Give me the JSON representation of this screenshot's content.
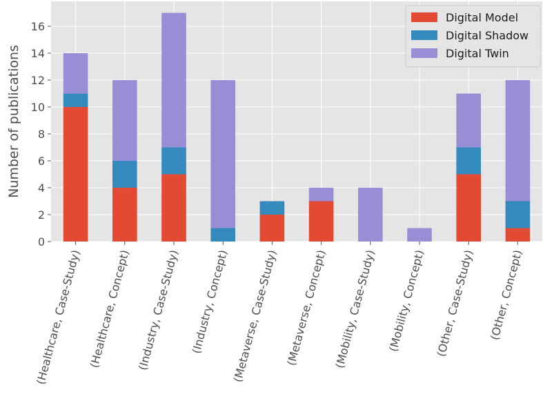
{
  "chart_data": {
    "type": "bar",
    "stacked": true,
    "categories": [
      "(Healthcare, Case-Study)",
      "(Healthcare, Concept)",
      "(Industry, Case-Study)",
      "(Industry, Concept)",
      "(Metaverse, Case-Study)",
      "(Metaverse, Concept)",
      "(Mobility, Case-Study)",
      "(Mobility, Concept)",
      "(Other, Case-Study)",
      "(Other, Concept)"
    ],
    "series": [
      {
        "name": "Digital Model",
        "color": "#e24a33",
        "values": [
          10,
          4,
          5,
          0,
          2,
          3,
          0,
          0,
          5,
          1
        ]
      },
      {
        "name": "Digital Shadow",
        "color": "#348abd",
        "values": [
          1,
          2,
          2,
          1,
          1,
          0,
          0,
          0,
          2,
          2
        ]
      },
      {
        "name": "Digital Twin",
        "color": "#988ed5",
        "values": [
          3,
          6,
          10,
          11,
          0,
          1,
          4,
          1,
          4,
          9
        ]
      }
    ],
    "xlabel": "",
    "ylabel": "Number of publications",
    "ylim": [
      0,
      17.85
    ],
    "yticks": [
      0,
      2,
      4,
      6,
      8,
      10,
      12,
      14,
      16
    ],
    "grid": true,
    "legend_position": "top-right",
    "background_color": "#e5e5e5"
  }
}
